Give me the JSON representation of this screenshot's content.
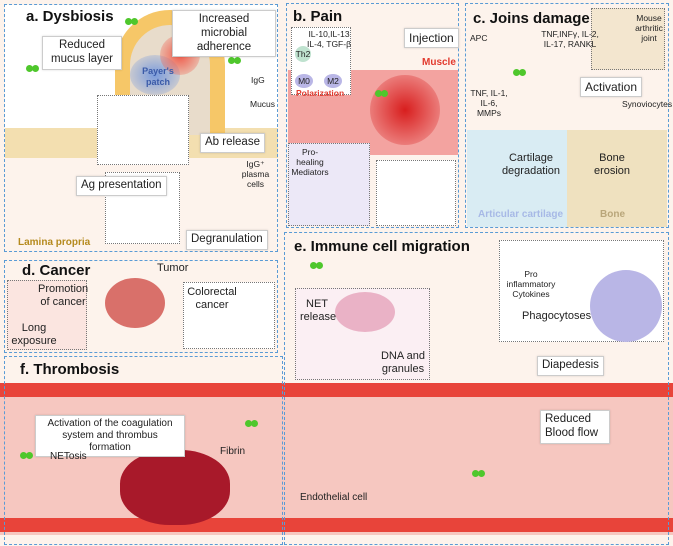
{
  "panels": {
    "a": {
      "title": "a. Dysbiosis",
      "reduced_mucus": "Reduced mucus layer",
      "microbial": "Increased microbial adherence",
      "payers_patch": "Payer's patch",
      "igg": "IgG",
      "mucus": "Mucus",
      "ab_release": "Ab release",
      "plasma_cells": "IgG⁺ plasma cells",
      "ag_presentation": "Ag presentation",
      "degranulation": "Degranulation",
      "lamina_propria": "Lamina propria"
    },
    "b": {
      "title": "b. Pain",
      "cytokines": "IL-10,IL-13 IL-4, TGF-β",
      "th2": "Th2",
      "m0": "M0",
      "m2": "M2",
      "polarization": "Polarization",
      "injection": "Injection",
      "muscle": "Muscle",
      "mediators": "Pro-healing Mediators"
    },
    "c": {
      "title": "c. Joins damage",
      "apc": "APC",
      "cytokines_top": "TNF,INFγ, IL-2, IL-17, RANKL",
      "mouse_joint": "Mouse arthritic joint",
      "activation": "Activation",
      "cytokines_left": "TNF, IL-1, IL-6, MMPs",
      "synoviocytes": "Synoviocytes",
      "cartilage_degradation": "Cartilage degradation",
      "bone_erosion": "Bone erosion",
      "articular_cartilage": "Articular cartilage",
      "bone": "Bone"
    },
    "d": {
      "title": "d. Cancer",
      "tumor": "Tumor",
      "promotion": "Promotion of cancer",
      "long_exposure": "Long exposure",
      "colorectal": "Colorectal cancer"
    },
    "e": {
      "title": "e. Immune cell migration",
      "net_release": "NET release",
      "dna": "DNA and granules",
      "pro_inflammatory": "Pro inflammatory Cytokines",
      "phagocytoses": "Phagocytoses",
      "diapedesis": "Diapedesis",
      "reduced_flow": "Reduced Blood flow"
    },
    "f": {
      "title": "f. Thrombosis",
      "activation": "Activation of the coagulation system and thrombus formation",
      "netosis": "NETosis",
      "fibrin": "Fibrin",
      "endothelial": "Endothelial cell"
    }
  },
  "colors": {
    "border": "#5a9bd5",
    "vessel_wall": "#e8443a",
    "lumen": "#f6c7c0",
    "particle": "#4fc72c",
    "muscle": "#f08a8a",
    "cartilage": "#d9ecf3",
    "bone": "#efe1bf"
  }
}
